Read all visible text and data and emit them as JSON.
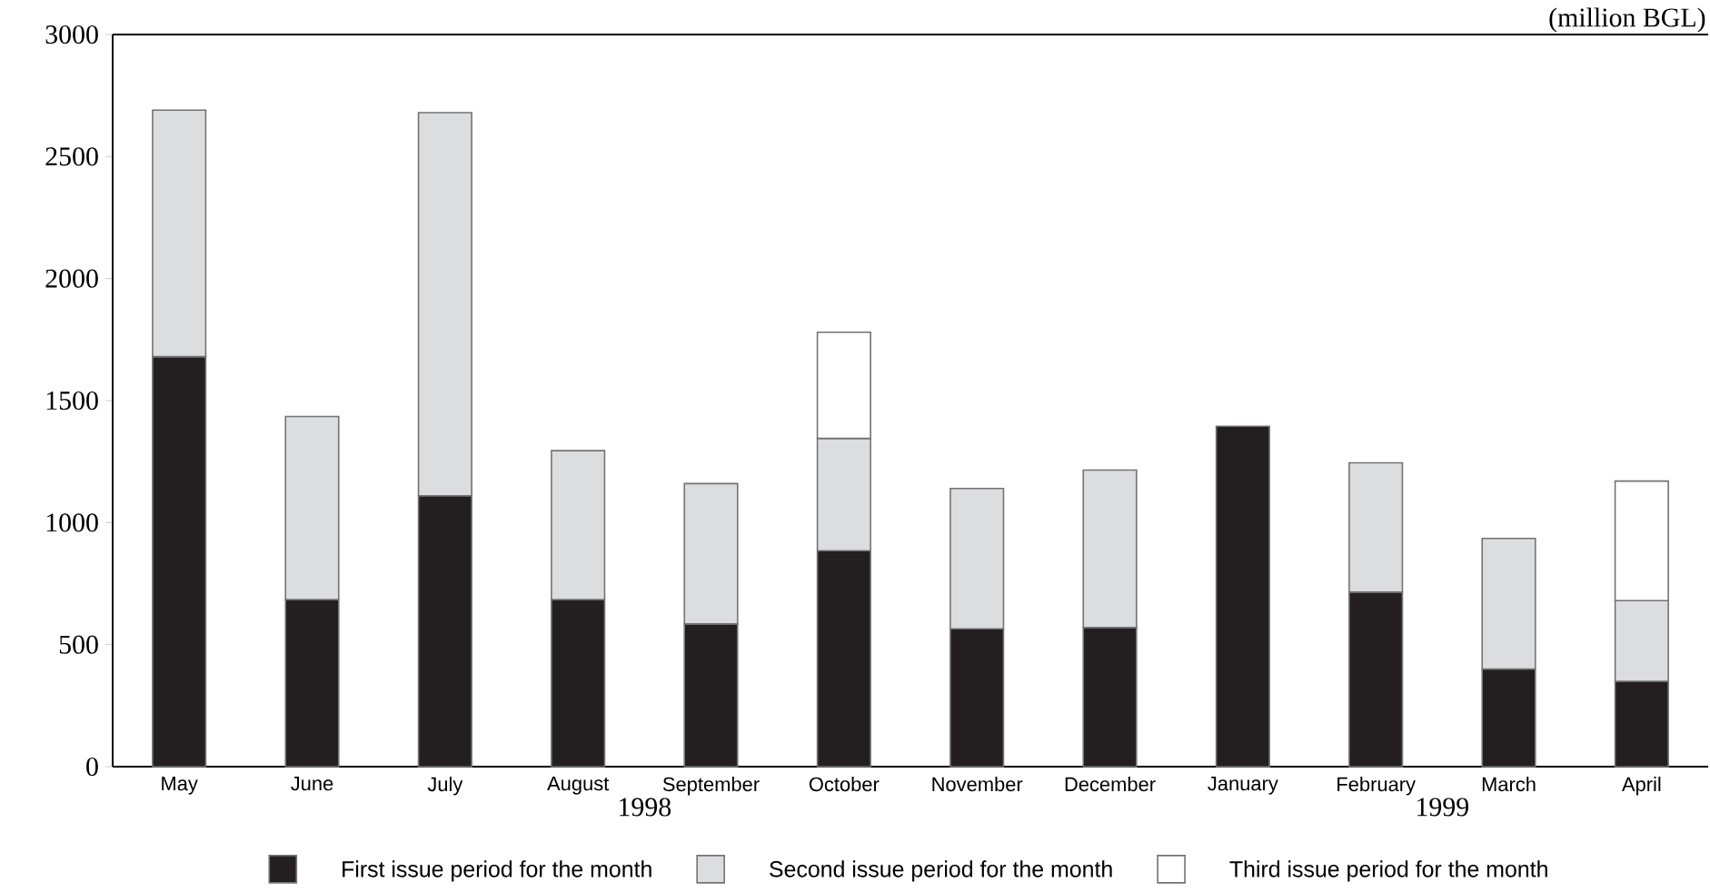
{
  "chart_data": {
    "type": "bar",
    "stacked": true,
    "categories": [
      "May",
      "June",
      "July",
      "August",
      "September",
      "October",
      "November",
      "December",
      "January",
      "February",
      "March",
      "April"
    ],
    "series": [
      {
        "name": "First issue period for the month",
        "color": "#231f20",
        "values": [
          1680,
          685,
          1110,
          685,
          585,
          885,
          565,
          570,
          1395,
          715,
          400,
          350
        ]
      },
      {
        "name": "Second issue period for the month",
        "color": "#dcdddf",
        "values": [
          1010,
          750,
          1570,
          610,
          575,
          460,
          575,
          645,
          null,
          530,
          535,
          330
        ]
      },
      {
        "name": "Third issue period for the month",
        "color": "#ffffff",
        "values": [
          null,
          null,
          null,
          null,
          null,
          435,
          null,
          null,
          null,
          null,
          null,
          490
        ]
      }
    ],
    "ylim": [
      0,
      3000
    ],
    "yticks": [
      0,
      500,
      1000,
      1500,
      2000,
      2500,
      3000
    ],
    "legend": "bottom",
    "annotations": [
      "(million BGL)",
      "1998",
      "1999"
    ]
  }
}
